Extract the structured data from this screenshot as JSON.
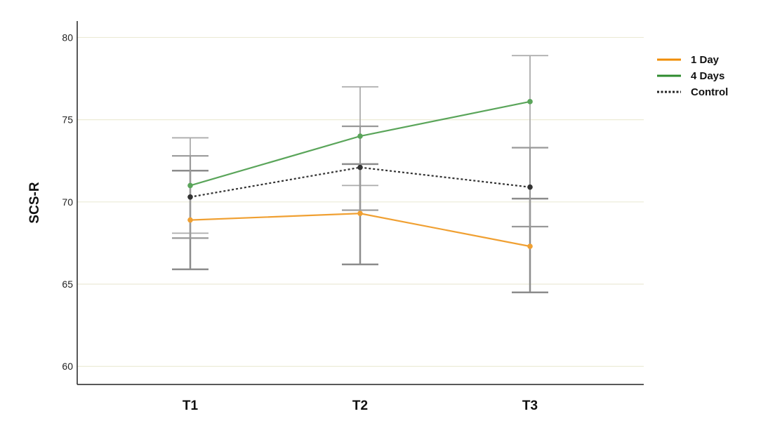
{
  "chart_data": {
    "type": "line",
    "title": "",
    "xlabel": "",
    "ylabel": "SCS-R",
    "categories": [
      "T1",
      "T2",
      "T3"
    ],
    "ylim": [
      58.9,
      81
    ],
    "yticks": [
      60,
      65,
      70,
      75,
      80
    ],
    "grid": "horizontal",
    "legend_position": "top-right",
    "series": [
      {
        "name": "1 Day",
        "color": "#f0a032",
        "legend_color": "#f08c00",
        "line_style": "solid",
        "values": [
          68.9,
          69.3,
          67.3
        ],
        "err_low": [
          65.9,
          66.2,
          64.5
        ],
        "err_high": [
          71.9,
          72.3,
          70.2
        ],
        "err_color": "#8c8c8c",
        "err_width": 2.5
      },
      {
        "name": "4 Days",
        "color": "#5aa55a",
        "legend_color": "#2e8b2e",
        "line_style": "solid",
        "values": [
          71.0,
          74.0,
          76.1
        ],
        "err_low": [
          68.1,
          71.0,
          73.3
        ],
        "err_high": [
          73.9,
          77.0,
          78.9
        ],
        "err_color": "#ababab",
        "err_width": 1.8
      },
      {
        "name": "Control",
        "color": "#333333",
        "legend_color": "#222222",
        "line_style": "dotted",
        "values": [
          70.3,
          72.1,
          70.9
        ],
        "err_low": [
          67.8,
          69.5,
          68.5
        ],
        "err_high": [
          72.8,
          74.6,
          73.3
        ],
        "err_color": "#999999",
        "err_width": 2.2
      }
    ]
  }
}
